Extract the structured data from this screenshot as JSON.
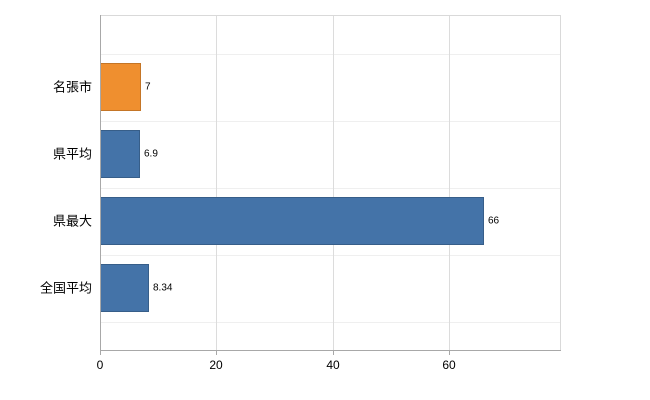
{
  "chart_data": {
    "type": "bar",
    "orientation": "horizontal",
    "title": "",
    "xlabel": "",
    "ylabel": "",
    "categories": [
      "名張市",
      "県平均",
      "県最大",
      "全国平均"
    ],
    "values": [
      7,
      6.9,
      66,
      8.34
    ],
    "value_labels": [
      "7",
      "6.9",
      "66",
      "8.34"
    ],
    "bar_colors": [
      "#ef8f2f",
      "#4473a8",
      "#4473a8",
      "#4473a8"
    ],
    "xlim": [
      0,
      79
    ],
    "xticks": [
      0,
      20,
      40,
      60
    ],
    "xtick_labels": [
      "0",
      "20",
      "40",
      "60"
    ],
    "grid": true,
    "legend": "none",
    "colors": {
      "highlight_bar": "#ef8f2f",
      "default_bar": "#4473a8",
      "grid": "#dcdcdc",
      "axis": "#a8a8a8",
      "background": "#ffffff"
    }
  }
}
